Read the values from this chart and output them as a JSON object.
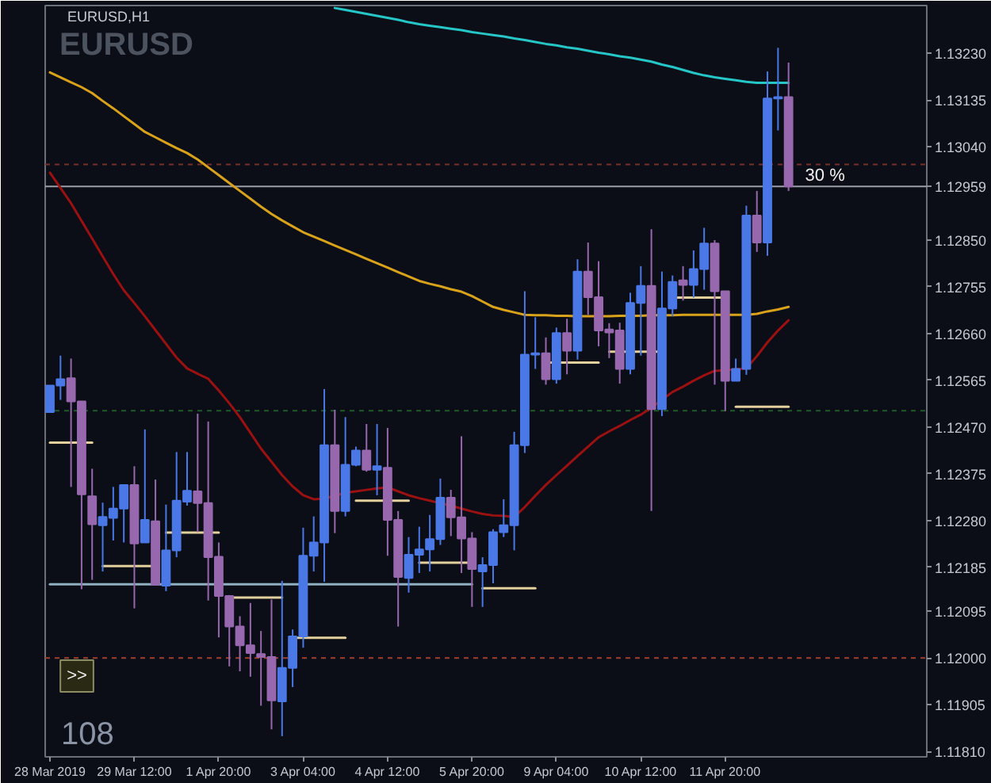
{
  "chart_data": {
    "type": "candlestick",
    "title": "EURUSD,H1",
    "subtitle": "EURUSD",
    "categories": [
      "28 Mar 2019",
      null,
      null,
      null,
      null,
      null,
      null,
      null,
      "29 Mar 12:00",
      null,
      null,
      null,
      null,
      null,
      null,
      null,
      "1 Apr 20:00",
      null,
      null,
      null,
      null,
      null,
      null,
      null,
      "3 Apr 04:00",
      null,
      null,
      null,
      null,
      null,
      null,
      null,
      "4 Apr 12:00",
      null,
      null,
      null,
      null,
      null,
      null,
      null,
      "5 Apr 20:00",
      null,
      null,
      null,
      null,
      null,
      null,
      null,
      "9 Apr 04:00",
      null,
      null,
      null,
      null,
      null,
      null,
      null,
      "10 Apr 12:00",
      null,
      null,
      null,
      null,
      null,
      null,
      null,
      "11 Apr 20:00",
      null,
      null,
      null,
      null,
      null,
      null
    ],
    "ohlc": [
      [
        1.125,
        1.12554,
        1.125,
        1.12554
      ],
      [
        1.12554,
        1.12615,
        1.12525,
        1.12567
      ],
      [
        1.12569,
        1.12609,
        1.12348,
        1.12522
      ],
      [
        1.12522,
        1.12522,
        1.1214,
        1.12333
      ],
      [
        1.12329,
        1.12385,
        1.12159,
        1.12272
      ],
      [
        1.1227,
        1.12316,
        1.12176,
        1.12287
      ],
      [
        1.12285,
        1.12348,
        1.12239,
        1.12304
      ],
      [
        1.12304,
        1.12352,
        1.12235,
        1.12352
      ],
      [
        1.12352,
        1.1239,
        1.12101,
        1.12233
      ],
      [
        1.12235,
        1.12465,
        1.12235,
        1.12281
      ],
      [
        1.12278,
        1.12363,
        1.12149,
        1.12149
      ],
      [
        1.12147,
        1.12312,
        1.12136,
        1.12219
      ],
      [
        1.12219,
        1.12419,
        1.12205,
        1.1232
      ],
      [
        1.12318,
        1.12419,
        1.1231,
        1.1234
      ],
      [
        1.12339,
        1.12497,
        1.12256,
        1.12315
      ],
      [
        1.12315,
        1.12481,
        1.12117,
        1.12205
      ],
      [
        1.12206,
        1.12235,
        1.12042,
        1.12126
      ],
      [
        1.12126,
        1.12128,
        1.11983,
        1.12064
      ],
      [
        1.12064,
        1.12085,
        1.11973,
        1.12026
      ],
      [
        1.12026,
        1.12112,
        1.11962,
        1.1201
      ],
      [
        1.12008,
        1.12055,
        1.11903,
        1.12002
      ],
      [
        1.12002,
        1.12119,
        1.11855,
        1.11914
      ],
      [
        1.11912,
        1.12157,
        1.11841,
        1.1198
      ],
      [
        1.1198,
        1.12058,
        1.11941,
        1.12044
      ],
      [
        1.12044,
        1.12265,
        1.12021,
        1.12208
      ],
      [
        1.12208,
        1.12288,
        1.12176,
        1.12235
      ],
      [
        1.12235,
        1.12547,
        1.12155,
        1.12433
      ],
      [
        1.12433,
        1.12505,
        1.12254,
        1.12299
      ],
      [
        1.12299,
        1.1249,
        1.12288,
        1.12393
      ],
      [
        1.12393,
        1.1243,
        1.1239,
        1.12422
      ],
      [
        1.12422,
        1.12476,
        1.12379,
        1.12383
      ],
      [
        1.12383,
        1.12476,
        1.12331,
        1.1239
      ],
      [
        1.12387,
        1.12468,
        1.12208,
        1.12281
      ],
      [
        1.12281,
        1.12299,
        1.12064,
        1.12165
      ],
      [
        1.12163,
        1.12246,
        1.12133,
        1.1221
      ],
      [
        1.1221,
        1.12267,
        1.12173,
        1.12221
      ],
      [
        1.12221,
        1.12291,
        1.12176,
        1.12242
      ],
      [
        1.12242,
        1.12365,
        1.1223,
        1.12326
      ],
      [
        1.12326,
        1.12342,
        1.12248,
        1.12286
      ],
      [
        1.12286,
        1.12451,
        1.12173,
        1.12243
      ],
      [
        1.12243,
        1.12256,
        1.12104,
        1.12181
      ],
      [
        1.12176,
        1.12205,
        1.12104,
        1.12189
      ],
      [
        1.12189,
        1.12262,
        1.12152,
        1.12256
      ],
      [
        1.12256,
        1.12323,
        1.12246,
        1.1227
      ],
      [
        1.1227,
        1.1246,
        1.12219,
        1.12433
      ],
      [
        1.12433,
        1.12746,
        1.12417,
        1.12617
      ],
      [
        1.12617,
        1.12693,
        1.12588,
        1.1262
      ],
      [
        1.1262,
        1.12652,
        1.12556,
        1.12567
      ],
      [
        1.12567,
        1.12672,
        1.12558,
        1.12661
      ],
      [
        1.12661,
        1.1269,
        1.12577,
        1.12625
      ],
      [
        1.12625,
        1.12811,
        1.12607,
        1.12786
      ],
      [
        1.12786,
        1.12845,
        1.12698,
        1.12734
      ],
      [
        1.12734,
        1.12807,
        1.12634,
        1.12666
      ],
      [
        1.12668,
        1.12681,
        1.1261,
        1.12662
      ],
      [
        1.12666,
        1.12682,
        1.12558,
        1.12588
      ],
      [
        1.12588,
        1.12743,
        1.12577,
        1.12722
      ],
      [
        1.12722,
        1.12797,
        1.12615,
        1.12757
      ],
      [
        1.12757,
        1.12872,
        1.12299,
        1.12506
      ],
      [
        1.12506,
        1.12786,
        1.12492,
        1.12711
      ],
      [
        1.12711,
        1.12778,
        1.12695,
        1.12765
      ],
      [
        1.12768,
        1.12797,
        1.12727,
        1.12759
      ],
      [
        1.12759,
        1.12829,
        1.12733,
        1.12791
      ],
      [
        1.12791,
        1.12875,
        1.12749,
        1.12843
      ],
      [
        1.12843,
        1.1285,
        1.12556,
        1.12746
      ],
      [
        1.12746,
        1.12746,
        1.12502,
        1.12564
      ],
      [
        1.12564,
        1.12609,
        1.12564,
        1.12588
      ],
      [
        1.12588,
        1.1292,
        1.12576,
        1.129
      ],
      [
        1.129,
        1.1295,
        1.12826,
        1.12845
      ],
      [
        1.12845,
        1.13193,
        1.12818,
        1.13138
      ],
      [
        1.13138,
        1.13241,
        1.13073,
        1.13141
      ],
      [
        1.13141,
        1.13211,
        1.1295,
        1.12959
      ]
    ],
    "colors": [
      "#4a78e6",
      "#4a78e6",
      "#9868ae",
      "#9868ae",
      "#9868ae",
      "#4a78e6",
      "#4a78e6",
      "#4a78e6",
      "#9868ae",
      "#4a78e6",
      "#9868ae",
      "#4a78e6",
      "#4a78e6",
      "#4a78e6",
      "#9868ae",
      "#9868ae",
      "#9868ae",
      "#9868ae",
      "#9868ae",
      "#9868ae",
      "#9868ae",
      "#9868ae",
      "#4a78e6",
      "#4a78e6",
      "#4a78e6",
      "#4a78e6",
      "#4a78e6",
      "#9868ae",
      "#4a78e6",
      "#4a78e6",
      "#9868ae",
      "#4a78e6",
      "#9868ae",
      "#9868ae",
      "#4a78e6",
      "#4a78e6",
      "#4a78e6",
      "#4a78e6",
      "#9868ae",
      "#9868ae",
      "#9868ae",
      "#4a78e6",
      "#4a78e6",
      "#4a78e6",
      "#4a78e6",
      "#4a78e6",
      "#4a78e6",
      "#9868ae",
      "#4a78e6",
      "#9868ae",
      "#4a78e6",
      "#9868ae",
      "#9868ae",
      "#9868ae",
      "#9868ae",
      "#4a78e6",
      "#4a78e6",
      "#9868ae",
      "#4a78e6",
      "#4a78e6",
      "#9868ae",
      "#4a78e6",
      "#4a78e6",
      "#9868ae",
      "#9868ae",
      "#4a78e6",
      "#4a78e6",
      "#9868ae",
      "#4a78e6",
      "#4a78e6",
      "#9868ae"
    ],
    "series": [
      {
        "type": "line",
        "color": "#26c6c6",
        "values": [
          null,
          null,
          null,
          null,
          null,
          null,
          null,
          null,
          null,
          null,
          null,
          null,
          null,
          null,
          null,
          null,
          null,
          null,
          null,
          null,
          null,
          null,
          null,
          null,
          null,
          null,
          null,
          1.13322,
          1.13318,
          1.13314,
          1.1331,
          1.13306,
          1.13302,
          1.13298,
          1.13293,
          1.13289,
          1.13286,
          1.13283,
          1.1328,
          1.13277,
          1.13273,
          1.1327,
          1.13267,
          1.13264,
          1.1326,
          1.13257,
          1.13253,
          1.13249,
          1.13246,
          1.13242,
          1.13239,
          1.13235,
          1.13231,
          1.13228,
          1.13224,
          1.13221,
          1.13217,
          1.13213,
          1.13207,
          1.13202,
          1.13196,
          1.1319,
          1.13185,
          1.13181,
          1.13178,
          1.13175,
          1.13172,
          1.1317,
          1.1317,
          1.1317,
          1.1317
        ]
      },
      {
        "type": "line",
        "color": "#d9a21b",
        "values": [
          1.13191,
          1.13181,
          1.13171,
          1.13161,
          1.13149,
          1.13133,
          1.13118,
          1.13102,
          1.13086,
          1.1307,
          1.13059,
          1.13048,
          1.13037,
          1.13027,
          1.13014,
          1.12998,
          1.12982,
          1.12966,
          1.1295,
          1.12934,
          1.12918,
          1.12903,
          1.1289,
          1.12878,
          1.12866,
          1.12857,
          1.12848,
          1.12839,
          1.1283,
          1.12821,
          1.12812,
          1.12803,
          1.12794,
          1.12785,
          1.12776,
          1.12767,
          1.12761,
          1.12756,
          1.1275,
          1.12745,
          1.12736,
          1.12725,
          1.12714,
          1.12708,
          1.12703,
          1.12698,
          1.12697,
          1.12697,
          1.12696,
          1.12696,
          1.12695,
          1.12695,
          1.12695,
          1.12695,
          1.12696,
          1.12696,
          1.12696,
          1.12697,
          1.12697,
          1.12697,
          1.12698,
          1.12698,
          1.12698,
          1.12698,
          1.12698,
          1.12698,
          1.12698,
          1.127,
          1.12705,
          1.12709,
          1.12714
        ]
      },
      {
        "type": "line",
        "color": "#9b1111",
        "values": [
          1.12987,
          1.12956,
          1.12925,
          1.12889,
          1.12853,
          1.12817,
          1.12781,
          1.12748,
          1.12722,
          1.12695,
          1.12667,
          1.12639,
          1.12611,
          1.12589,
          1.12578,
          1.12568,
          1.12544,
          1.12518,
          1.1249,
          1.12458,
          1.12426,
          1.12399,
          1.12372,
          1.12349,
          1.12331,
          1.12323,
          1.12324,
          1.1233,
          1.12336,
          1.12339,
          1.12342,
          1.12345,
          1.12347,
          1.12339,
          1.12331,
          1.12325,
          1.1232,
          1.12315,
          1.1231,
          1.12304,
          1.12298,
          1.12293,
          1.1229,
          1.12289,
          1.12287,
          1.12307,
          1.1233,
          1.12352,
          1.12372,
          1.12391,
          1.12411,
          1.1243,
          1.12449,
          1.12461,
          1.12472,
          1.12484,
          1.12495,
          1.12509,
          1.12525,
          1.12541,
          1.12552,
          1.12564,
          1.12575,
          1.12584,
          1.12585,
          1.12587,
          1.12589,
          1.12614,
          1.12642,
          1.12666,
          1.12687
        ]
      },
      {
        "type": "line",
        "color": "#8fb0c0",
        "values": [
          1.1215,
          1.1215,
          1.1215,
          1.1215,
          1.1215,
          1.1215,
          1.1215,
          1.1215,
          1.1215,
          1.1215,
          1.1215,
          1.1215,
          1.1215,
          1.1215,
          1.1215,
          1.1215,
          1.1215,
          1.1215,
          1.1215,
          1.1215,
          1.1215,
          1.1215,
          1.1215,
          1.1215,
          1.1215,
          1.1215,
          1.1215,
          1.1215,
          1.1215,
          1.1215,
          1.1215,
          1.1215,
          1.1215,
          1.1215,
          1.1215,
          1.1215,
          1.1215,
          1.1215,
          1.1215,
          1.1215,
          1.1215,
          null,
          null,
          null,
          null,
          null,
          null,
          null,
          null,
          null,
          null,
          null,
          null,
          null,
          null,
          null,
          null,
          null,
          null,
          null,
          null,
          null,
          null,
          null,
          null,
          null,
          null,
          null,
          null,
          null,
          null
        ]
      },
      {
        "type": "line",
        "color": "#e3cf9c",
        "values": [
          1.12438,
          1.12438,
          1.12438,
          1.12438,
          1.12438,
          null,
          null,
          null,
          null,
          null,
          null,
          null,
          null,
          null,
          null,
          null,
          null,
          null,
          null,
          null,
          null,
          null,
          null,
          null,
          null,
          null,
          null,
          null,
          null,
          null,
          null,
          null,
          null,
          null,
          null,
          null,
          null,
          null,
          null,
          null,
          null,
          null,
          null,
          null,
          null,
          null,
          null,
          null,
          null,
          null,
          null,
          null,
          null,
          null,
          null,
          null,
          null,
          null,
          null,
          null,
          null,
          null,
          null,
          null,
          null,
          null,
          null,
          null,
          null,
          null,
          null
        ]
      },
      {
        "type": "line",
        "color": "#e3cf9c",
        "values": [
          null,
          null,
          null,
          null,
          null,
          1.12187,
          1.12187,
          1.12187,
          1.12187,
          1.12187,
          1.12187,
          null,
          null,
          null,
          null,
          null,
          null,
          null,
          null,
          null,
          null,
          null,
          null,
          null,
          null,
          null,
          null,
          null,
          null,
          null,
          null,
          null,
          null,
          null,
          null,
          null,
          null,
          null,
          null,
          null,
          null,
          null,
          null,
          null,
          null,
          null,
          null,
          null,
          null,
          null,
          null,
          null,
          null,
          null,
          null,
          null,
          null,
          null,
          null,
          null,
          null,
          null,
          null,
          null,
          null,
          null,
          null,
          null,
          null,
          null,
          null
        ]
      },
      {
        "type": "line",
        "color": "#e3cf9c",
        "values": [
          null,
          null,
          null,
          null,
          null,
          null,
          null,
          null,
          null,
          null,
          null,
          1.12255,
          1.12255,
          1.12255,
          1.12255,
          1.12255,
          1.12255,
          null,
          null,
          null,
          null,
          null,
          null,
          null,
          null,
          null,
          null,
          null,
          null,
          null,
          null,
          null,
          null,
          null,
          null,
          null,
          null,
          null,
          null,
          null,
          null,
          null,
          null,
          null,
          null,
          null,
          null,
          null,
          null,
          null,
          null,
          null,
          null,
          null,
          null,
          null,
          null,
          null,
          null,
          null,
          null,
          null,
          null,
          null,
          null,
          null,
          null,
          null,
          null,
          null,
          null
        ]
      },
      {
        "type": "line",
        "color": "#e3cf9c",
        "values": [
          null,
          null,
          null,
          null,
          null,
          null,
          null,
          null,
          null,
          null,
          null,
          null,
          null,
          null,
          null,
          null,
          null,
          1.12123,
          1.12123,
          1.12123,
          1.12123,
          1.12123,
          1.12123,
          null,
          null,
          null,
          null,
          null,
          null,
          null,
          null,
          null,
          null,
          null,
          null,
          null,
          null,
          null,
          null,
          null,
          null,
          null,
          null,
          null,
          null,
          null,
          null,
          null,
          null,
          null,
          null,
          null,
          null,
          null,
          null,
          null,
          null,
          null,
          null,
          null,
          null,
          null,
          null,
          null,
          null,
          null,
          null,
          null,
          null,
          null,
          null
        ]
      },
      {
        "type": "line",
        "color": "#e3cf9c",
        "values": [
          null,
          null,
          null,
          null,
          null,
          null,
          null,
          null,
          null,
          null,
          null,
          null,
          null,
          null,
          null,
          null,
          null,
          null,
          null,
          null,
          null,
          null,
          null,
          1.12041,
          1.12041,
          1.12041,
          1.12041,
          1.12041,
          1.12041,
          null,
          null,
          null,
          null,
          null,
          null,
          null,
          null,
          null,
          null,
          null,
          null,
          null,
          null,
          null,
          null,
          null,
          null,
          null,
          null,
          null,
          null,
          null,
          null,
          null,
          null,
          null,
          null,
          null,
          null,
          null,
          null,
          null,
          null,
          null,
          null,
          null,
          null,
          null,
          null,
          null,
          null
        ]
      },
      {
        "type": "line",
        "color": "#e3cf9c",
        "values": [
          null,
          null,
          null,
          null,
          null,
          null,
          null,
          null,
          null,
          null,
          null,
          null,
          null,
          null,
          null,
          null,
          null,
          null,
          null,
          null,
          null,
          null,
          null,
          null,
          null,
          null,
          null,
          null,
          null,
          1.1232,
          1.1232,
          1.1232,
          1.1232,
          1.1232,
          1.1232,
          null,
          null,
          null,
          null,
          null,
          null,
          null,
          null,
          null,
          null,
          null,
          null,
          null,
          null,
          null,
          null,
          null,
          null,
          null,
          null,
          null,
          null,
          null,
          null,
          null,
          null,
          null,
          null,
          null,
          null,
          null,
          null,
          null,
          null,
          null,
          null
        ]
      },
      {
        "type": "line",
        "color": "#e3cf9c",
        "values": [
          null,
          null,
          null,
          null,
          null,
          null,
          null,
          null,
          null,
          null,
          null,
          null,
          null,
          null,
          null,
          null,
          null,
          null,
          null,
          null,
          null,
          null,
          null,
          null,
          null,
          null,
          null,
          null,
          null,
          null,
          null,
          null,
          null,
          null,
          null,
          1.12194,
          1.12194,
          1.12194,
          1.12194,
          1.12194,
          1.12194,
          null,
          null,
          null,
          null,
          null,
          null,
          null,
          null,
          null,
          null,
          null,
          null,
          null,
          null,
          null,
          null,
          null,
          null,
          null,
          null,
          null,
          null,
          null,
          null,
          null,
          null,
          null,
          null,
          null,
          null
        ]
      },
      {
        "type": "line",
        "color": "#e3cf9c",
        "values": [
          null,
          null,
          null,
          null,
          null,
          null,
          null,
          null,
          null,
          null,
          null,
          null,
          null,
          null,
          null,
          null,
          null,
          null,
          null,
          null,
          null,
          null,
          null,
          null,
          null,
          null,
          null,
          null,
          null,
          null,
          null,
          null,
          null,
          null,
          null,
          null,
          null,
          null,
          null,
          null,
          null,
          1.12142,
          1.12142,
          1.12142,
          1.12142,
          1.12142,
          1.12142,
          null,
          null,
          null,
          null,
          null,
          null,
          null,
          null,
          null,
          null,
          null,
          null,
          null,
          null,
          null,
          null,
          null,
          null,
          null,
          null,
          null,
          null,
          null,
          null
        ]
      },
      {
        "type": "line",
        "color": "#e3cf9c",
        "values": [
          null,
          null,
          null,
          null,
          null,
          null,
          null,
          null,
          null,
          null,
          null,
          null,
          null,
          null,
          null,
          null,
          null,
          null,
          null,
          null,
          null,
          null,
          null,
          null,
          null,
          null,
          null,
          null,
          null,
          null,
          null,
          null,
          null,
          null,
          null,
          null,
          null,
          null,
          null,
          null,
          null,
          null,
          null,
          null,
          null,
          null,
          null,
          1.12601,
          1.12601,
          1.12601,
          1.12601,
          1.12601,
          1.12601,
          null,
          null,
          null,
          null,
          null,
          null,
          null,
          null,
          null,
          null,
          null,
          null,
          null,
          null,
          null,
          null,
          null,
          null
        ]
      },
      {
        "type": "line",
        "color": "#e3cf9c",
        "values": [
          null,
          null,
          null,
          null,
          null,
          null,
          null,
          null,
          null,
          null,
          null,
          null,
          null,
          null,
          null,
          null,
          null,
          null,
          null,
          null,
          null,
          null,
          null,
          null,
          null,
          null,
          null,
          null,
          null,
          null,
          null,
          null,
          null,
          null,
          null,
          null,
          null,
          null,
          null,
          null,
          null,
          null,
          null,
          null,
          null,
          null,
          null,
          null,
          null,
          null,
          null,
          null,
          null,
          1.12623,
          1.12623,
          1.12623,
          1.12623,
          1.12623,
          1.12623,
          null,
          null,
          null,
          null,
          null,
          null,
          null,
          null,
          null,
          null,
          null,
          null
        ]
      },
      {
        "type": "line",
        "color": "#e3cf9c",
        "values": [
          null,
          null,
          null,
          null,
          null,
          null,
          null,
          null,
          null,
          null,
          null,
          null,
          null,
          null,
          null,
          null,
          null,
          null,
          null,
          null,
          null,
          null,
          null,
          null,
          null,
          null,
          null,
          null,
          null,
          null,
          null,
          null,
          null,
          null,
          null,
          null,
          null,
          null,
          null,
          null,
          null,
          null,
          null,
          null,
          null,
          null,
          null,
          null,
          null,
          null,
          null,
          null,
          null,
          null,
          null,
          null,
          null,
          null,
          null,
          1.12733,
          1.12733,
          1.12733,
          1.12733,
          1.12733,
          1.12733,
          null,
          null,
          null,
          null,
          null,
          null
        ]
      },
      {
        "type": "line",
        "color": "#e3cf9c",
        "values": [
          null,
          null,
          null,
          null,
          null,
          null,
          null,
          null,
          null,
          null,
          null,
          null,
          null,
          null,
          null,
          null,
          null,
          null,
          null,
          null,
          null,
          null,
          null,
          null,
          null,
          null,
          null,
          null,
          null,
          null,
          null,
          null,
          null,
          null,
          null,
          null,
          null,
          null,
          null,
          null,
          null,
          null,
          null,
          null,
          null,
          null,
          null,
          null,
          null,
          null,
          null,
          null,
          null,
          null,
          null,
          null,
          null,
          null,
          null,
          null,
          null,
          null,
          null,
          null,
          null,
          1.12511,
          1.12511,
          1.12511,
          1.12511,
          1.12511,
          1.12511
        ]
      }
    ],
    "ref_lines": [
      {
        "axis": "y",
        "value": 1.13004,
        "color": "#7a2e2a",
        "line_style": "dashed"
      },
      {
        "axis": "y",
        "value": 1.12959,
        "label": "1.12959",
        "color": "#9a9ea6"
      },
      {
        "axis": "y",
        "value": 1.12503,
        "color": "#1f5a2a",
        "line_style": "dashed"
      },
      {
        "axis": "y",
        "value": 1.12,
        "color": "#a0402a",
        "line_style": "dashed"
      }
    ],
    "annotations": [
      "30 %",
      ">>",
      "108"
    ],
    "ylim": [
      1.11799,
      1.13327
    ],
    "yticks": [
      {
        "value": 1.1323,
        "label": "1.13230"
      },
      {
        "value": 1.13135,
        "label": "1.13135"
      },
      {
        "value": 1.1304,
        "label": "1.13040"
      },
      {
        "value": 1.1285,
        "label": "1.12850"
      },
      {
        "value": 1.12755,
        "label": "1.12755"
      },
      {
        "value": 1.1266,
        "label": "1.12660"
      },
      {
        "value": 1.12565,
        "label": "1.12565"
      },
      {
        "value": 1.1247,
        "label": "1.12470"
      },
      {
        "value": 1.12375,
        "label": "1.12375"
      },
      {
        "value": 1.1228,
        "label": "1.12280"
      },
      {
        "value": 1.12185,
        "label": "1.12185"
      },
      {
        "value": 1.12095,
        "label": "1.12095"
      },
      {
        "value": 1.12,
        "label": "1.12000"
      },
      {
        "value": 1.11905,
        "label": "1.11905"
      },
      {
        "value": 1.1181,
        "label": "1.11810"
      }
    ]
  }
}
